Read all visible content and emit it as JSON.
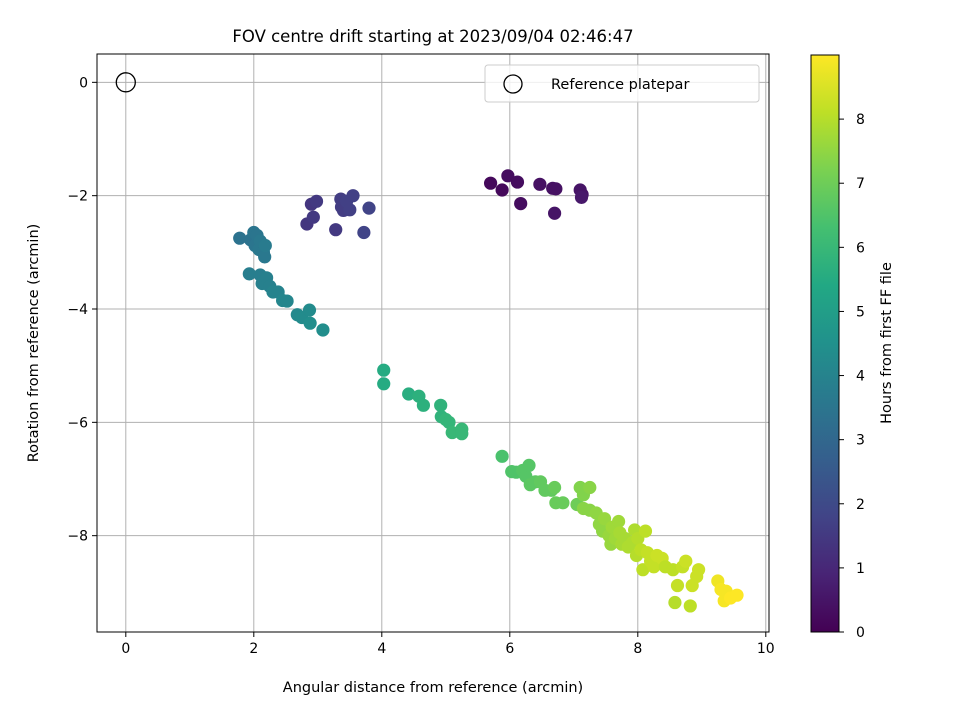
{
  "chart_data": {
    "type": "scatter",
    "title": "FOV centre drift starting at 2023/09/04 02:46:47",
    "xlabel": "Angular distance from reference (arcmin)",
    "ylabel": "Rotation from reference (arcmin)",
    "colorbar_label": "Hours from first FF file",
    "xlim": [
      -0.45,
      10.05
    ],
    "ylim": [
      -9.7,
      0.5
    ],
    "xticks": [
      0,
      2,
      4,
      6,
      8,
      10
    ],
    "yticks": [
      0,
      -2,
      -4,
      -6,
      -8
    ],
    "colorbar_range": [
      0,
      9
    ],
    "colorbar_ticks": [
      0,
      1,
      2,
      3,
      4,
      5,
      6,
      7,
      8
    ],
    "grid": true,
    "legend_position": "top-right",
    "reference": {
      "name": "Reference platepar",
      "x": 0,
      "y": 0
    },
    "points": [
      {
        "x": 5.7,
        "y": -1.78,
        "h": 0.2
      },
      {
        "x": 5.88,
        "y": -1.9,
        "h": 0.2
      },
      {
        "x": 5.97,
        "y": -1.65,
        "h": 0.3
      },
      {
        "x": 6.12,
        "y": -1.76,
        "h": 0.3
      },
      {
        "x": 6.17,
        "y": -2.14,
        "h": 0.3
      },
      {
        "x": 6.47,
        "y": -1.8,
        "h": 0.4
      },
      {
        "x": 6.67,
        "y": -1.87,
        "h": 0.4
      },
      {
        "x": 6.72,
        "y": -1.88,
        "h": 0.4
      },
      {
        "x": 6.7,
        "y": -2.31,
        "h": 0.5
      },
      {
        "x": 7.1,
        "y": -1.9,
        "h": 0.5
      },
      {
        "x": 7.13,
        "y": -1.98,
        "h": 0.5
      },
      {
        "x": 7.12,
        "y": -2.03,
        "h": 0.6
      },
      {
        "x": 2.83,
        "y": -2.5,
        "h": 1.4
      },
      {
        "x": 2.9,
        "y": -2.15,
        "h": 1.4
      },
      {
        "x": 2.93,
        "y": -2.38,
        "h": 1.5
      },
      {
        "x": 2.98,
        "y": -2.1,
        "h": 1.5
      },
      {
        "x": 3.28,
        "y": -2.6,
        "h": 1.5
      },
      {
        "x": 3.36,
        "y": -2.06,
        "h": 1.6
      },
      {
        "x": 3.37,
        "y": -2.2,
        "h": 1.6
      },
      {
        "x": 3.4,
        "y": -2.26,
        "h": 1.6
      },
      {
        "x": 3.45,
        "y": -2.1,
        "h": 1.7
      },
      {
        "x": 3.5,
        "y": -2.25,
        "h": 1.7
      },
      {
        "x": 3.55,
        "y": -2.0,
        "h": 1.7
      },
      {
        "x": 3.72,
        "y": -2.65,
        "h": 1.8
      },
      {
        "x": 3.8,
        "y": -2.22,
        "h": 1.8
      },
      {
        "x": 1.78,
        "y": -2.75,
        "h": 3.4
      },
      {
        "x": 1.95,
        "y": -2.78,
        "h": 3.4
      },
      {
        "x": 2.0,
        "y": -2.65,
        "h": 3.5
      },
      {
        "x": 2.02,
        "y": -2.88,
        "h": 3.5
      },
      {
        "x": 2.05,
        "y": -2.7,
        "h": 3.5
      },
      {
        "x": 2.08,
        "y": -2.95,
        "h": 3.6
      },
      {
        "x": 2.1,
        "y": -2.8,
        "h": 3.6
      },
      {
        "x": 2.15,
        "y": -3.0,
        "h": 3.6
      },
      {
        "x": 2.17,
        "y": -3.08,
        "h": 3.6
      },
      {
        "x": 2.18,
        "y": -2.88,
        "h": 3.7
      },
      {
        "x": 1.93,
        "y": -3.38,
        "h": 3.8
      },
      {
        "x": 2.1,
        "y": -3.4,
        "h": 3.8
      },
      {
        "x": 2.13,
        "y": -3.55,
        "h": 3.9
      },
      {
        "x": 2.2,
        "y": -3.45,
        "h": 3.9
      },
      {
        "x": 2.25,
        "y": -3.6,
        "h": 3.9
      },
      {
        "x": 2.3,
        "y": -3.7,
        "h": 4.0
      },
      {
        "x": 2.38,
        "y": -3.7,
        "h": 4.0
      },
      {
        "x": 2.45,
        "y": -3.85,
        "h": 4.1
      },
      {
        "x": 2.52,
        "y": -3.86,
        "h": 4.1
      },
      {
        "x": 2.68,
        "y": -4.1,
        "h": 4.2
      },
      {
        "x": 2.75,
        "y": -4.15,
        "h": 4.3
      },
      {
        "x": 2.87,
        "y": -4.02,
        "h": 4.3
      },
      {
        "x": 2.88,
        "y": -4.25,
        "h": 4.4
      },
      {
        "x": 3.08,
        "y": -4.37,
        "h": 4.4
      },
      {
        "x": 4.03,
        "y": -5.08,
        "h": 5.5
      },
      {
        "x": 4.03,
        "y": -5.32,
        "h": 5.5
      },
      {
        "x": 4.42,
        "y": -5.5,
        "h": 5.6
      },
      {
        "x": 4.58,
        "y": -5.54,
        "h": 5.7
      },
      {
        "x": 4.65,
        "y": -5.7,
        "h": 5.7
      },
      {
        "x": 4.92,
        "y": -5.7,
        "h": 5.8
      },
      {
        "x": 4.93,
        "y": -5.9,
        "h": 5.8
      },
      {
        "x": 5.0,
        "y": -5.95,
        "h": 5.9
      },
      {
        "x": 5.05,
        "y": -6.0,
        "h": 5.9
      },
      {
        "x": 5.1,
        "y": -6.18,
        "h": 6.0
      },
      {
        "x": 5.25,
        "y": -6.12,
        "h": 6.0
      },
      {
        "x": 5.25,
        "y": -6.2,
        "h": 6.0
      },
      {
        "x": 5.88,
        "y": -6.6,
        "h": 6.4
      },
      {
        "x": 6.03,
        "y": -6.87,
        "h": 6.5
      },
      {
        "x": 6.1,
        "y": -6.88,
        "h": 6.5
      },
      {
        "x": 6.2,
        "y": -6.85,
        "h": 6.6
      },
      {
        "x": 6.25,
        "y": -6.95,
        "h": 6.6
      },
      {
        "x": 6.3,
        "y": -6.76,
        "h": 6.6
      },
      {
        "x": 6.32,
        "y": -7.1,
        "h": 6.7
      },
      {
        "x": 6.4,
        "y": -7.05,
        "h": 6.7
      },
      {
        "x": 6.48,
        "y": -7.05,
        "h": 6.8
      },
      {
        "x": 6.55,
        "y": -7.2,
        "h": 6.8
      },
      {
        "x": 6.65,
        "y": -7.2,
        "h": 6.8
      },
      {
        "x": 6.7,
        "y": -7.15,
        "h": 6.9
      },
      {
        "x": 6.72,
        "y": -7.42,
        "h": 6.9
      },
      {
        "x": 6.83,
        "y": -7.42,
        "h": 6.9
      },
      {
        "x": 7.05,
        "y": -7.45,
        "h": 7.0
      },
      {
        "x": 7.1,
        "y": -7.15,
        "h": 7.3
      },
      {
        "x": 7.15,
        "y": -7.28,
        "h": 7.3
      },
      {
        "x": 7.15,
        "y": -7.52,
        "h": 7.4
      },
      {
        "x": 7.25,
        "y": -7.55,
        "h": 7.4
      },
      {
        "x": 7.25,
        "y": -7.15,
        "h": 7.4
      },
      {
        "x": 7.35,
        "y": -7.6,
        "h": 7.5
      },
      {
        "x": 7.4,
        "y": -7.8,
        "h": 7.5
      },
      {
        "x": 7.45,
        "y": -7.92,
        "h": 7.5
      },
      {
        "x": 7.48,
        "y": -7.7,
        "h": 7.6
      },
      {
        "x": 7.55,
        "y": -8.0,
        "h": 7.6
      },
      {
        "x": 7.58,
        "y": -8.15,
        "h": 7.6
      },
      {
        "x": 7.6,
        "y": -7.85,
        "h": 7.7
      },
      {
        "x": 7.65,
        "y": -8.05,
        "h": 7.7
      },
      {
        "x": 7.7,
        "y": -7.75,
        "h": 7.7
      },
      {
        "x": 7.72,
        "y": -7.95,
        "h": 7.8
      },
      {
        "x": 7.75,
        "y": -8.15,
        "h": 7.8
      },
      {
        "x": 7.8,
        "y": -8.05,
        "h": 7.8
      },
      {
        "x": 7.85,
        "y": -8.2,
        "h": 7.9
      },
      {
        "x": 7.92,
        "y": -8.12,
        "h": 7.9
      },
      {
        "x": 7.95,
        "y": -7.9,
        "h": 7.9
      },
      {
        "x": 7.98,
        "y": -8.35,
        "h": 8.0
      },
      {
        "x": 8.0,
        "y": -8.05,
        "h": 8.0
      },
      {
        "x": 8.05,
        "y": -8.25,
        "h": 8.1
      },
      {
        "x": 8.08,
        "y": -8.6,
        "h": 8.1
      },
      {
        "x": 8.12,
        "y": -7.92,
        "h": 8.1
      },
      {
        "x": 8.15,
        "y": -8.3,
        "h": 8.2
      },
      {
        "x": 8.2,
        "y": -8.45,
        "h": 8.2
      },
      {
        "x": 8.25,
        "y": -8.55,
        "h": 8.2
      },
      {
        "x": 8.3,
        "y": -8.35,
        "h": 8.3
      },
      {
        "x": 8.38,
        "y": -8.4,
        "h": 8.3
      },
      {
        "x": 8.43,
        "y": -8.55,
        "h": 8.1
      },
      {
        "x": 8.55,
        "y": -8.6,
        "h": 8.1
      },
      {
        "x": 8.58,
        "y": -9.18,
        "h": 8.0
      },
      {
        "x": 8.62,
        "y": -8.88,
        "h": 8.2
      },
      {
        "x": 8.7,
        "y": -8.55,
        "h": 8.2
      },
      {
        "x": 8.75,
        "y": -8.45,
        "h": 8.3
      },
      {
        "x": 8.82,
        "y": -9.24,
        "h": 8.1
      },
      {
        "x": 8.85,
        "y": -8.88,
        "h": 8.3
      },
      {
        "x": 8.92,
        "y": -8.72,
        "h": 8.3
      },
      {
        "x": 8.95,
        "y": -8.6,
        "h": 8.3
      },
      {
        "x": 9.25,
        "y": -8.8,
        "h": 8.8
      },
      {
        "x": 9.3,
        "y": -8.95,
        "h": 8.9
      },
      {
        "x": 9.35,
        "y": -9.15,
        "h": 8.9
      },
      {
        "x": 9.38,
        "y": -8.98,
        "h": 8.9
      },
      {
        "x": 9.45,
        "y": -9.1,
        "h": 9.0
      },
      {
        "x": 9.55,
        "y": -9.05,
        "h": 9.0
      }
    ]
  }
}
